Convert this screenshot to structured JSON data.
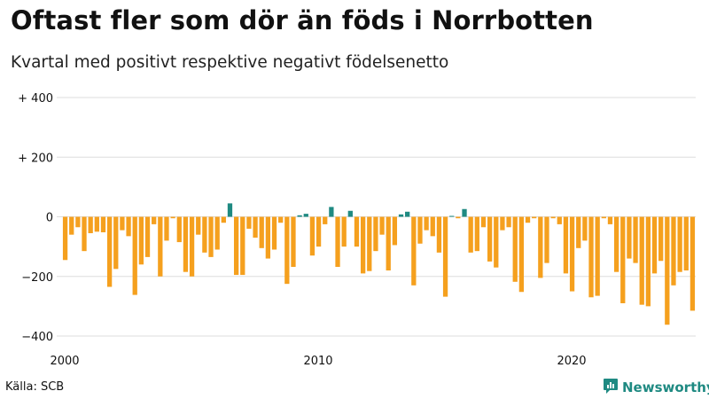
{
  "brand": {
    "name": "Newsworthy",
    "icon": "newsworthy-logo-icon",
    "color": "#1f8a82"
  },
  "source": "Källa: SCB",
  "chart_data": {
    "type": "bar",
    "title": "Oftast fler som dör än föds i Norrbotten",
    "subtitle": "Kvartal med positivt respektive negativt födelsenetto",
    "xlabel": "",
    "ylabel": "",
    "ylim": [
      -400,
      400
    ],
    "yticks": [
      {
        "value": 400,
        "label": "+ 400"
      },
      {
        "value": 200,
        "label": "+ 200"
      },
      {
        "value": 0,
        "label": "0"
      },
      {
        "value": -200,
        "label": "−200"
      },
      {
        "value": -400,
        "label": "−400"
      }
    ],
    "xticks": [
      {
        "index": 0,
        "label": "2000"
      },
      {
        "index": 40,
        "label": "2010"
      },
      {
        "index": 80,
        "label": "2020"
      }
    ],
    "colors": {
      "positive": "#1f8a82",
      "negative": "#f5a01e",
      "grid": "#dddddd"
    },
    "categories": [
      "2000 Q1",
      "2000 Q2",
      "2000 Q3",
      "2000 Q4",
      "2001 Q1",
      "2001 Q2",
      "2001 Q3",
      "2001 Q4",
      "2002 Q1",
      "2002 Q2",
      "2002 Q3",
      "2002 Q4",
      "2003 Q1",
      "2003 Q2",
      "2003 Q3",
      "2003 Q4",
      "2004 Q1",
      "2004 Q2",
      "2004 Q3",
      "2004 Q4",
      "2005 Q1",
      "2005 Q2",
      "2005 Q3",
      "2005 Q4",
      "2006 Q1",
      "2006 Q2",
      "2006 Q3",
      "2006 Q4",
      "2007 Q1",
      "2007 Q2",
      "2007 Q3",
      "2007 Q4",
      "2008 Q1",
      "2008 Q2",
      "2008 Q3",
      "2008 Q4",
      "2009 Q1",
      "2009 Q2",
      "2009 Q3",
      "2009 Q4",
      "2010 Q1",
      "2010 Q2",
      "2010 Q3",
      "2010 Q4",
      "2011 Q1",
      "2011 Q2",
      "2011 Q3",
      "2011 Q4",
      "2012 Q1",
      "2012 Q2",
      "2012 Q3",
      "2012 Q4",
      "2013 Q1",
      "2013 Q2",
      "2013 Q3",
      "2013 Q4",
      "2014 Q1",
      "2014 Q2",
      "2014 Q3",
      "2014 Q4",
      "2015 Q1",
      "2015 Q2",
      "2015 Q3",
      "2015 Q4",
      "2016 Q1",
      "2016 Q2",
      "2016 Q3",
      "2016 Q4",
      "2017 Q1",
      "2017 Q2",
      "2017 Q3",
      "2017 Q4",
      "2018 Q1",
      "2018 Q2",
      "2018 Q3",
      "2018 Q4",
      "2019 Q1",
      "2019 Q2",
      "2019 Q3",
      "2019 Q4",
      "2020 Q1",
      "2020 Q2",
      "2020 Q3",
      "2020 Q4",
      "2021 Q1",
      "2021 Q2",
      "2021 Q3",
      "2021 Q4",
      "2022 Q1",
      "2022 Q2",
      "2022 Q3",
      "2022 Q4",
      "2023 Q1",
      "2023 Q2",
      "2023 Q3",
      "2023 Q4",
      "2024 Q1",
      "2024 Q2",
      "2024 Q3",
      "2024 Q4"
    ],
    "values": [
      -145,
      -60,
      -35,
      -115,
      -55,
      -50,
      -52,
      -235,
      -175,
      -45,
      -65,
      -262,
      -160,
      -135,
      -25,
      -200,
      -80,
      -5,
      -85,
      -185,
      -200,
      -60,
      -120,
      -135,
      -110,
      -20,
      45,
      -195,
      -195,
      -40,
      -70,
      -105,
      -140,
      -110,
      -20,
      -225,
      -168,
      5,
      10,
      -130,
      -100,
      -25,
      33,
      -168,
      -100,
      20,
      -100,
      -190,
      -182,
      -115,
      -60,
      -180,
      -95,
      8,
      17,
      -230,
      -90,
      -45,
      -65,
      -120,
      -268,
      3,
      -5,
      26,
      -120,
      -115,
      -35,
      -150,
      -170,
      -45,
      -35,
      -218,
      -252,
      -20,
      -5,
      -205,
      -155,
      -5,
      -25,
      -190,
      -250,
      -105,
      -80,
      -270,
      -265,
      -5,
      -25,
      -185,
      -290,
      -140,
      -155,
      -295,
      -300,
      -190,
      -148,
      -362,
      -230,
      -185,
      -180,
      -315
    ]
  }
}
